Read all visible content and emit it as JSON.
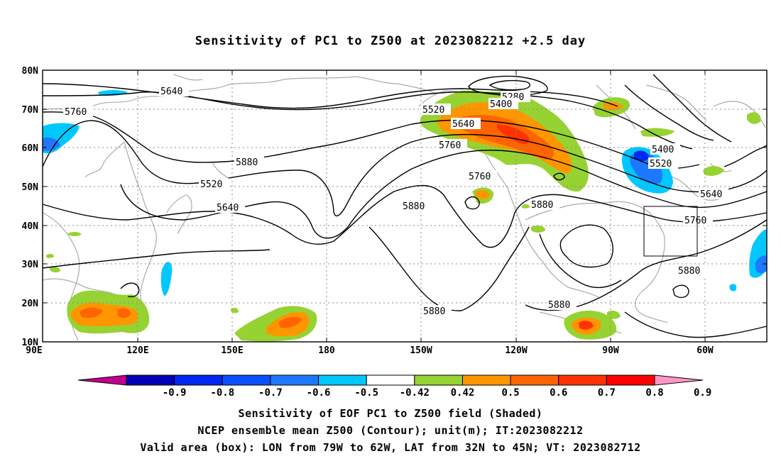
{
  "title": "Sensitivity of PC1 to Z500 at 2023082212 +2.5 day",
  "lat_labels": [
    "80N",
    "70N",
    "60N",
    "50N",
    "40N",
    "30N",
    "20N",
    "10N"
  ],
  "lon_labels": [
    "90E",
    "120E",
    "150E",
    "180",
    "150W",
    "120W",
    "90W",
    "60W"
  ],
  "contour_labels": [
    "5280",
    "5400",
    "5520",
    "5640",
    "5760",
    "5880",
    "5520",
    "5640",
    "5640",
    "5760",
    "5880",
    "5760",
    "5880",
    "5880",
    "5880",
    "5880",
    "5400",
    "5520",
    "5640",
    "5760",
    "5880"
  ],
  "colorbar": {
    "labels": [
      "-0.9",
      "-0.8",
      "-0.7",
      "-0.6",
      "-0.5",
      "-0.42",
      "0.42",
      "0.5",
      "0.6",
      "0.7",
      "0.8",
      "0.9"
    ],
    "colors": [
      "#c0008c",
      "#0000b4",
      "#0028f0",
      "#0a50ff",
      "#1e78ff",
      "#00c8ff",
      "#ffffff",
      "#96d232",
      "#ff9600",
      "#ff6400",
      "#ff3200",
      "#ff0000",
      "#ff96c8"
    ]
  },
  "caption": {
    "line1": "Sensitivity of EOF PC1 to Z500 field (Shaded)",
    "line2": "NCEP ensemble mean Z500 (Contour); unit(m); IT:2023082212",
    "line3": "Valid area (box): LON from 79W to 62W, LAT from 32N to 45N; VT: 2023082712"
  }
}
